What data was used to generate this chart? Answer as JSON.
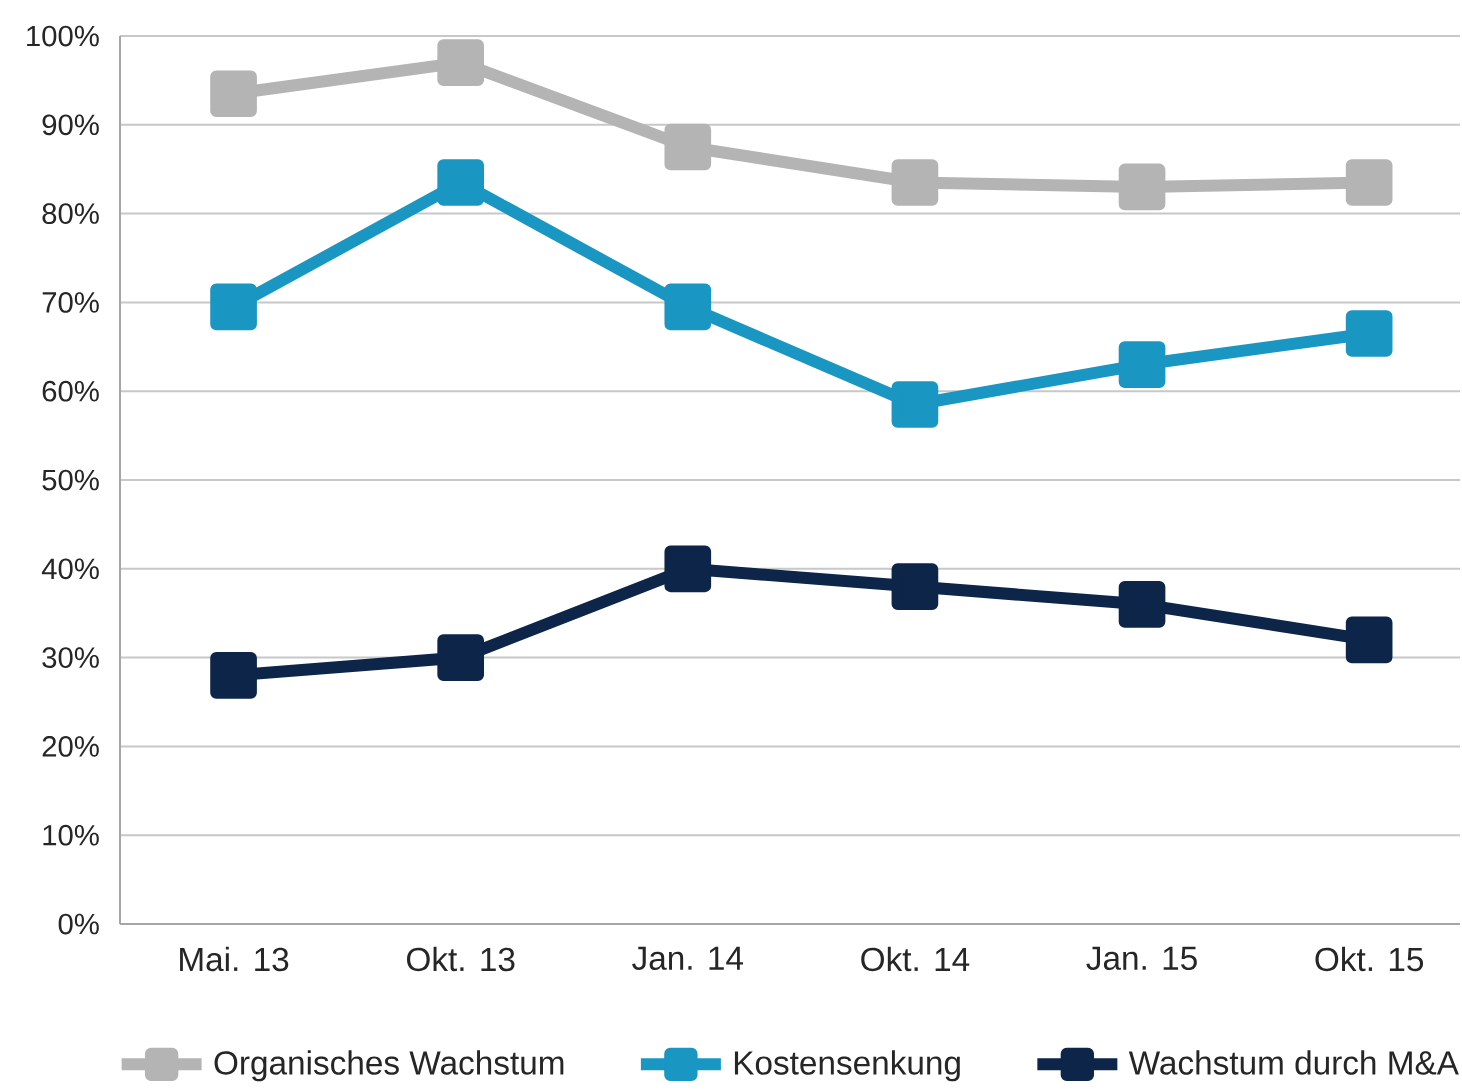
{
  "chart_data": {
    "type": "line",
    "categories": [
      "Mai. 13",
      "Okt. 13",
      "Jan. 14",
      "Okt. 14",
      "Jan. 15",
      "Okt. 15"
    ],
    "series": [
      {
        "name": "Organisches Wachstum",
        "color": "#b4b4b4",
        "values": [
          93.5,
          97,
          87.5,
          83.5,
          83,
          83.5
        ]
      },
      {
        "name": "Kostensenkung",
        "color": "#1a96c3",
        "values": [
          69.5,
          83.5,
          69.5,
          58.5,
          63,
          66.5
        ]
      },
      {
        "name": "Wachstum durch M&A",
        "color": "#0c2548",
        "values": [
          28,
          30,
          40,
          38,
          36,
          32
        ]
      }
    ],
    "ylim": [
      0,
      100
    ],
    "yticks": [
      {
        "value": 0,
        "label": "0%"
      },
      {
        "value": 10,
        "label": "10%"
      },
      {
        "value": 20,
        "label": "20%"
      },
      {
        "value": 30,
        "label": "30%"
      },
      {
        "value": 40,
        "label": "40%"
      },
      {
        "value": 50,
        "label": "50%"
      },
      {
        "value": 60,
        "label": "60%"
      },
      {
        "value": 70,
        "label": "70%"
      },
      {
        "value": 80,
        "label": "80%"
      },
      {
        "value": 90,
        "label": "90%"
      },
      {
        "value": 100,
        "label": "100%"
      }
    ],
    "grid": "y",
    "legend": "bottom",
    "marker": "square",
    "line_style": "solid"
  }
}
